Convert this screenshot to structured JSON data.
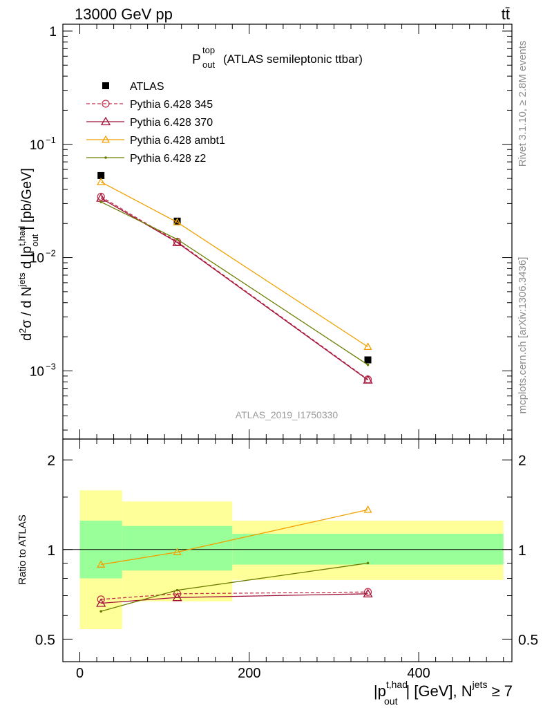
{
  "header": {
    "left": "13000 GeV pp",
    "right": "tt̄"
  },
  "side_labels": {
    "rivet": "Rivet 3.1.10, ≥ 2.8M events",
    "mcplots": "mcplots.cern.ch [arXiv:1306.3436]"
  },
  "chart_data": [
    {
      "type": "scatter",
      "panel": "main",
      "title_main": "P",
      "title_sup": "top",
      "title_sub": "out",
      "title_rest": "(ATLAS semileptonic ttbar)",
      "ylabel": "d²σ / d N^jets d |p_out^t,had| [pb/GeV]",
      "yscale": "log",
      "ylim": [
        0.00025,
        1.15
      ],
      "xlim": [
        -20,
        510
      ],
      "ytick_labels": [
        "1",
        "10⁻¹",
        "10⁻²",
        "10⁻³"
      ],
      "watermark": "ATLAS_2019_I1750330",
      "x": [
        25,
        115,
        340
      ],
      "series": [
        {
          "name": "ATLAS",
          "color": "#000000",
          "marker": "square",
          "values": [
            0.053,
            0.021,
            0.00125
          ]
        },
        {
          "name": "Pythia 6.428 345",
          "color": "#c0304a",
          "marker": "circle-open",
          "dash": true,
          "values": [
            0.0345,
            0.0138,
            0.00084
          ]
        },
        {
          "name": "Pythia 6.428 370",
          "color": "#a01038",
          "marker": "triangle-open",
          "values": [
            0.0335,
            0.0136,
            0.00083
          ]
        },
        {
          "name": "Pythia 6.428 ambt1",
          "color": "#f0a000",
          "marker": "triangle-open",
          "values": [
            0.0465,
            0.0205,
            0.00163
          ]
        },
        {
          "name": "Pythia 6.428 z2",
          "color": "#6b7d00",
          "marker": "dot",
          "values": [
            0.031,
            0.0145,
            0.00113
          ]
        }
      ]
    },
    {
      "type": "line",
      "panel": "ratio",
      "ylabel": "Ratio to ATLAS",
      "yscale": "log",
      "ylim": [
        0.42,
        2.35
      ],
      "xlim": [
        -20,
        510
      ],
      "ytick_labels": [
        "2",
        "1",
        "0.5"
      ],
      "xtick_labels": [
        "0",
        "200",
        "400"
      ],
      "xlabel": "|p_out^t,had| [GeV], N^jets ≥ 7",
      "bands": [
        {
          "x0": 0,
          "x1": 50,
          "outer": [
            0.54,
            1.58
          ],
          "inner": [
            0.8,
            1.25
          ]
        },
        {
          "x0": 50,
          "x1": 180,
          "outer": [
            0.67,
            1.45
          ],
          "inner": [
            0.85,
            1.2
          ]
        },
        {
          "x0": 180,
          "x1": 500,
          "outer": [
            0.79,
            1.25
          ],
          "inner": [
            0.89,
            1.13
          ]
        }
      ],
      "x": [
        25,
        115,
        340
      ],
      "series": [
        {
          "name": "Pythia 6.428 345",
          "values": [
            0.68,
            0.71,
            0.72
          ]
        },
        {
          "name": "Pythia 6.428 370",
          "values": [
            0.66,
            0.69,
            0.71
          ]
        },
        {
          "name": "Pythia 6.428 ambt1",
          "values": [
            0.89,
            0.98,
            1.36
          ]
        },
        {
          "name": "Pythia 6.428 z2",
          "values": [
            0.62,
            0.73,
            0.9
          ]
        }
      ]
    }
  ]
}
